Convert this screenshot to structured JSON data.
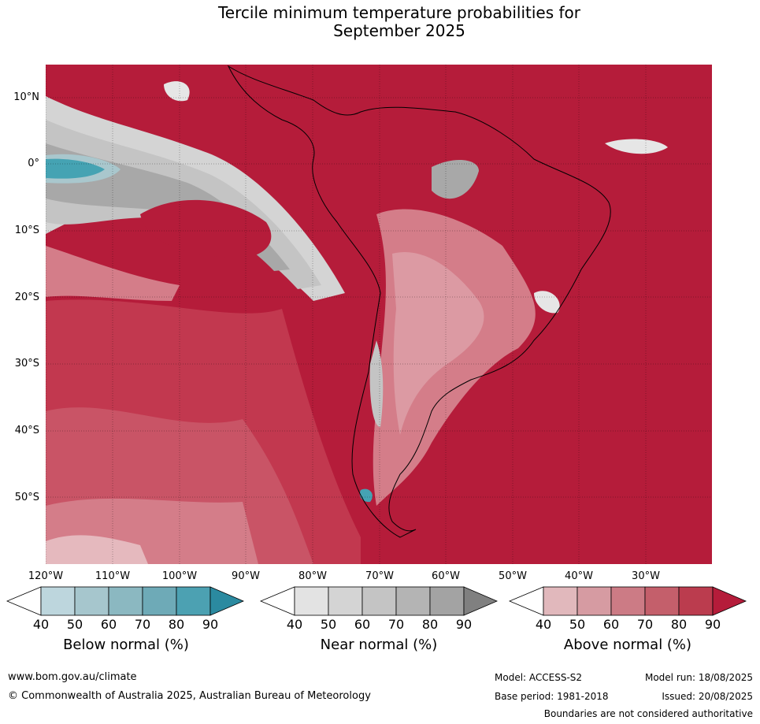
{
  "title": {
    "line1": "Tercile minimum temperature probabilities for",
    "line2": "September 2025"
  },
  "map": {
    "lat_labels": [
      "10°N",
      "0°",
      "10°S",
      "20°S",
      "30°S",
      "40°S",
      "50°S"
    ],
    "lon_labels": [
      "120°W",
      "110°W",
      "100°W",
      "90°W",
      "80°W",
      "70°W",
      "60°W",
      "50°W",
      "40°W",
      "30°W"
    ],
    "palette": {
      "above_90": "#b51c3a",
      "above_80": "#c2384f",
      "above_70": "#c95466",
      "above_60": "#d47d89",
      "above_50": "#dc9aa3",
      "above_40": "#e5b9be",
      "near_50": "#e6e6e6",
      "near_60": "#d4d4d4",
      "near_70": "#c4c4c4",
      "near_80": "#a8a8a8",
      "below_50": "#a9c7cd",
      "below_80": "#45a3b3",
      "below_90": "#2a8ca0"
    }
  },
  "colorbars": [
    {
      "title": "Below normal (%)",
      "ticks": [
        "40",
        "50",
        "60",
        "70",
        "80",
        "90"
      ],
      "colors": [
        "#ffffff",
        "#bdd6dd",
        "#a6c6cd",
        "#8bb8c1",
        "#6eaab7",
        "#4ca1b2",
        "#2b8aa0"
      ]
    },
    {
      "title": "Near normal (%)",
      "ticks": [
        "40",
        "50",
        "60",
        "70",
        "80",
        "90"
      ],
      "colors": [
        "#ffffff",
        "#e3e3e3",
        "#d4d4d4",
        "#c4c4c4",
        "#b4b4b4",
        "#a3a3a3",
        "#808080"
      ]
    },
    {
      "title": "Above normal (%)",
      "ticks": [
        "40",
        "50",
        "60",
        "70",
        "80",
        "90"
      ],
      "colors": [
        "#ffffff",
        "#e1b8bc",
        "#d69ba2",
        "#cc7b85",
        "#c45f6b",
        "#bb3c4e",
        "#b51c3a"
      ]
    }
  ],
  "footer": {
    "website": "www.bom.gov.au/climate",
    "copyright": "© Commonwealth of Australia 2025, Australian Bureau of Meteorology",
    "model": "Model: ACCESS-S2",
    "base_period": "Base period: 1981-2018",
    "model_run": "Model run: 18/08/2025",
    "issued": "Issued: 20/08/2025",
    "disclaimer": "Boundaries are not considered authoritative"
  }
}
